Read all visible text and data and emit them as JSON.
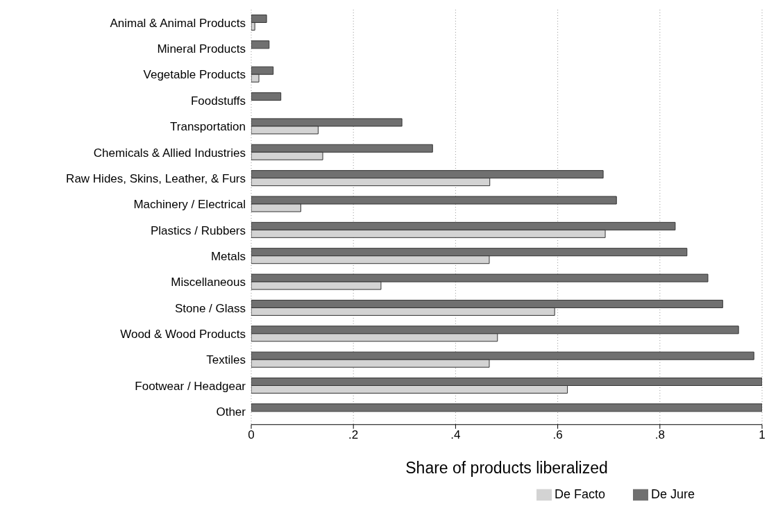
{
  "chart_data": {
    "type": "bar",
    "orientation": "horizontal",
    "xlabel": "Share of products liberalized",
    "categories": [
      "Animal & Animal Products",
      "Mineral Products",
      "Vegetable Products",
      "Foodstuffs",
      "Transportation",
      "Chemicals & Allied Industries",
      "Raw Hides, Skins, Leather, & Furs",
      "Machinery / Electrical",
      "Plastics / Rubbers",
      "Metals",
      "Miscellaneous",
      "Stone / Glass",
      "Wood & Wood Products",
      "Textiles",
      "Footwear / Headgear",
      "Other"
    ],
    "series": [
      {
        "name": "De Jure",
        "color": "#707070",
        "values": [
          0.03,
          0.035,
          0.043,
          0.058,
          0.295,
          0.355,
          0.689,
          0.715,
          0.83,
          0.853,
          0.894,
          0.923,
          0.954,
          0.984,
          1.0,
          1.0
        ]
      },
      {
        "name": "De Facto",
        "color": "#d3d3d3",
        "values": [
          0.007,
          0,
          0.015,
          0,
          0.131,
          0.14,
          0.467,
          0.097,
          0.693,
          0.466,
          0.254,
          0.594,
          0.482,
          0.466,
          0.619,
          0
        ]
      }
    ],
    "xlim": [
      0,
      1
    ],
    "xticks": [
      0,
      {
        "value": 0.2,
        "label": ".2"
      },
      {
        "value": 0.4,
        "label": ".4"
      },
      {
        "value": 0.6,
        "label": ".6"
      },
      {
        "value": 0.8,
        "label": ".8"
      },
      1
    ],
    "grid": "x",
    "legend": "bottom"
  }
}
